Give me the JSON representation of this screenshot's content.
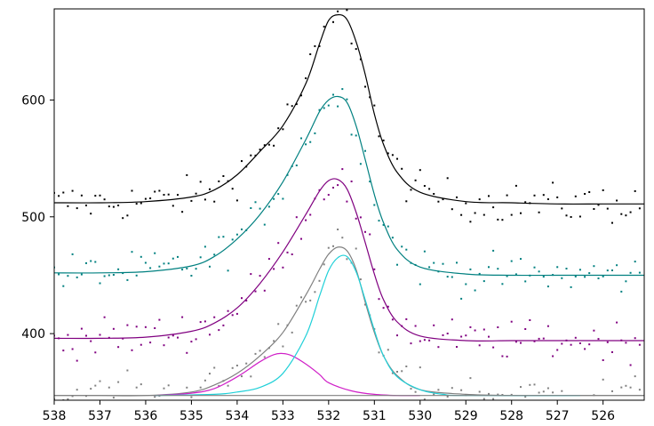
{
  "chart_data": {
    "type": "line",
    "title": "",
    "xlabel": "",
    "ylabel": "",
    "x_reversed": true,
    "xlim": [
      538,
      525.1
    ],
    "ylim": [
      343,
      678
    ],
    "grid": false,
    "legend": "none",
    "x_ticks": [
      "538",
      "537",
      "536",
      "535",
      "534",
      "533",
      "532",
      "531",
      "530",
      "529",
      "528",
      "527",
      "526"
    ],
    "y_ticks": [
      "400",
      "500",
      "600"
    ],
    "colors": {
      "black": "#000000",
      "teal": "#008080",
      "purple": "#800080",
      "gray": "#808080",
      "cyan": "#20d0d8",
      "magenta": "#d020c8"
    },
    "series": [
      {
        "color": "black",
        "kind": "fit",
        "x": [
          538,
          537,
          536,
          535,
          534.5,
          534,
          533.5,
          533,
          532.5,
          532.2,
          532,
          531.8,
          531.6,
          531.4,
          531.2,
          531,
          530.8,
          530.5,
          530,
          529,
          528,
          527,
          526,
          525.1
        ],
        "y": [
          512,
          512,
          513,
          517,
          523,
          536,
          556,
          578,
          614,
          648,
          668,
          673,
          669,
          650,
          622,
          588,
          562,
          538,
          521,
          513,
          512,
          511,
          511,
          511
        ]
      },
      {
        "color": "teal",
        "kind": "fit",
        "x": [
          538,
          537,
          536,
          535,
          534.5,
          534,
          533.5,
          533,
          532.5,
          532.2,
          532,
          531.8,
          531.6,
          531.4,
          531.2,
          531,
          530.8,
          530.5,
          530,
          529,
          528,
          527,
          526,
          525.1
        ],
        "y": [
          452,
          452,
          453,
          458,
          466,
          481,
          502,
          530,
          566,
          590,
          600,
          603,
          598,
          578,
          549,
          519,
          495,
          472,
          457,
          451,
          450,
          450,
          450,
          450
        ]
      },
      {
        "color": "purple",
        "kind": "fit",
        "x": [
          538,
          537,
          536,
          535,
          534.5,
          534,
          533.5,
          533,
          532.5,
          532.2,
          532,
          531.8,
          531.6,
          531.4,
          531.2,
          531,
          530.8,
          530.5,
          530,
          529,
          528,
          527,
          526,
          525.1
        ],
        "y": [
          396,
          396,
          397,
          402,
          409,
          422,
          443,
          470,
          502,
          522,
          531,
          532,
          524,
          504,
          478,
          451,
          429,
          410,
          398,
          394,
          394,
          394,
          394,
          394
        ]
      },
      {
        "color": "gray",
        "kind": "fit",
        "x": [
          538,
          537,
          536,
          535,
          534.5,
          534,
          533.5,
          533,
          532.5,
          532.2,
          532,
          531.8,
          531.6,
          531.4,
          531.2,
          531,
          530.8,
          530.5,
          530,
          529,
          528,
          527,
          526,
          525.1
        ],
        "y": [
          347,
          347,
          347,
          350,
          356,
          366,
          381,
          401,
          433,
          455,
          468,
          474,
          471,
          455,
          427,
          401,
          381,
          364,
          352,
          348,
          347,
          347,
          347,
          347
        ]
      },
      {
        "color": "magenta",
        "kind": "component",
        "x": [
          535.8,
          535,
          534.5,
          534,
          533.5,
          533.2,
          533,
          532.8,
          532.5,
          532.2,
          532,
          531.5,
          531,
          530.5,
          530
        ],
        "y": [
          347,
          349,
          353,
          363,
          376,
          382,
          383,
          381,
          374,
          365,
          358,
          351,
          348,
          347,
          347
        ]
      },
      {
        "color": "cyan",
        "kind": "component",
        "x": [
          535.8,
          534.5,
          534,
          533.5,
          533,
          532.5,
          532.2,
          532,
          531.8,
          531.6,
          531.4,
          531.2,
          531,
          530.8,
          530.5,
          530,
          529.5,
          529,
          526.5
        ],
        "y": [
          347,
          348,
          350,
          354,
          366,
          398,
          432,
          454,
          465,
          466,
          453,
          429,
          403,
          381,
          363,
          352,
          348,
          347,
          347
        ]
      },
      {
        "color": "gray",
        "kind": "baseline",
        "x": [
          538,
          525.1
        ],
        "y": [
          347,
          347
        ]
      }
    ]
  }
}
